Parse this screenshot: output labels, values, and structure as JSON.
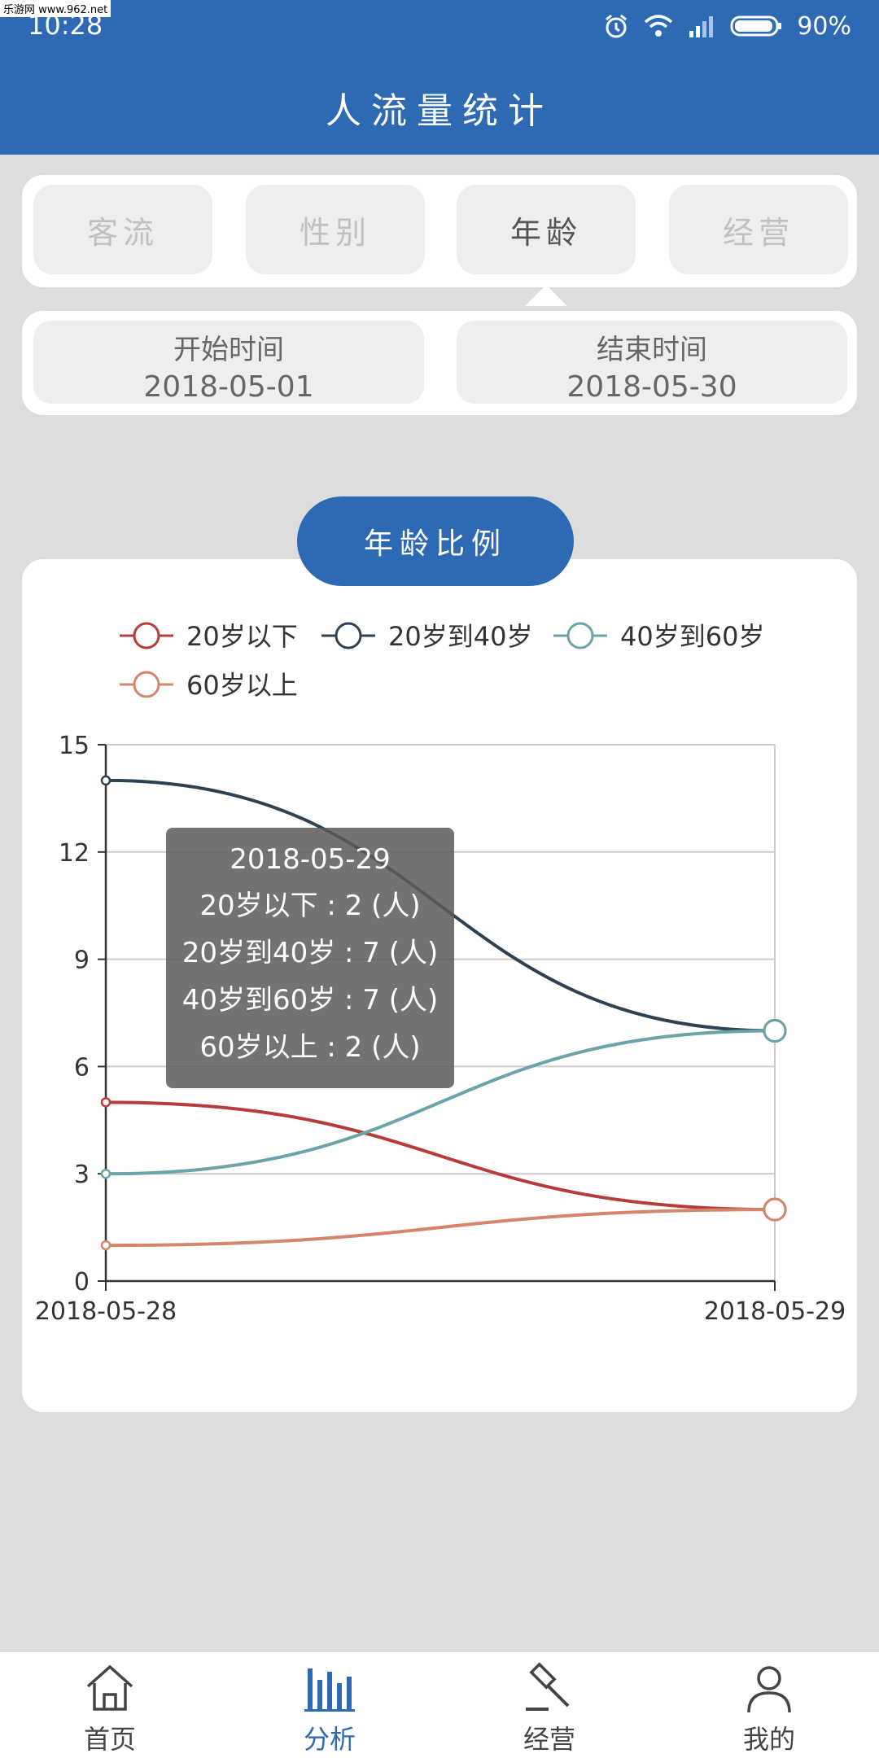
{
  "status": {
    "time": "10:28",
    "battery": "90%",
    "watermark": "乐游网 www.962.net"
  },
  "header": {
    "title": "人流量统计"
  },
  "tabs": [
    {
      "label": "客流",
      "active": false
    },
    {
      "label": "性别",
      "active": false
    },
    {
      "label": "年龄",
      "active": true
    },
    {
      "label": "经营",
      "active": false
    }
  ],
  "dates": {
    "start_label": "开始时间",
    "start_value": "2018-05-01",
    "end_label": "结束时间",
    "end_value": "2018-05-30"
  },
  "chart_section": {
    "title": "年龄比例"
  },
  "chart_data": {
    "type": "line",
    "categories": [
      "2018-05-28",
      "2018-05-29"
    ],
    "series": [
      {
        "name": "20岁以下",
        "values": [
          5,
          2
        ],
        "color": "#b83b3b"
      },
      {
        "name": "20岁到40岁",
        "values": [
          14,
          7
        ],
        "color": "#2e4153"
      },
      {
        "name": "40岁到60岁",
        "values": [
          3,
          7
        ],
        "color": "#6aa3aa"
      },
      {
        "name": "60岁以上",
        "values": [
          1,
          2
        ],
        "color": "#d4866a"
      }
    ],
    "ylim": [
      0,
      15
    ],
    "yticks": [
      0,
      3,
      6,
      9,
      12,
      15
    ],
    "legend_position": "top-left",
    "grid": true,
    "tooltip": {
      "title": "2018-05-29",
      "lines": [
        "20岁以下 : 2 (人)",
        "20岁到40岁 : 7 (人)",
        "40岁到60岁 : 7 (人)",
        "60岁以上 : 2 (人)"
      ]
    }
  },
  "nav": [
    {
      "label": "首页",
      "icon": "home-icon",
      "active": false
    },
    {
      "label": "分析",
      "icon": "bar-chart-icon",
      "active": true
    },
    {
      "label": "经营",
      "icon": "gavel-icon",
      "active": false
    },
    {
      "label": "我的",
      "icon": "user-icon",
      "active": false
    }
  ],
  "colors": {
    "primary": "#2d6ab3",
    "background": "#dddddd"
  }
}
